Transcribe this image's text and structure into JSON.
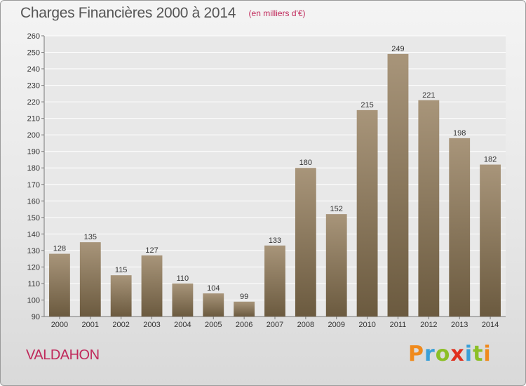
{
  "header": {
    "title": "Charges Financières 2000 à 2014",
    "subtitle": "(en milliers d'€)"
  },
  "footer": {
    "commune": "VALDAHON",
    "logo_text": "Proxiti",
    "logo_colors": [
      "#f08a1c",
      "#3aa0d8",
      "#8cbf26",
      "#e0301e",
      "#3aa0d8",
      "#8cbf26",
      "#f08a1c"
    ]
  },
  "colors": {
    "bar_top": "#a8957a",
    "bar_bottom": "#6b5a3f",
    "plot_bg": "#e8e8e8",
    "grid": "#ffffff",
    "axis": "#777777",
    "accent": "#c0285a"
  },
  "chart_data": {
    "type": "bar",
    "title": "Charges Financières 2000 à 2014",
    "subtitle": "(en milliers d'€)",
    "categories": [
      "2000",
      "2001",
      "2002",
      "2003",
      "2004",
      "2005",
      "2006",
      "2007",
      "2008",
      "2009",
      "2010",
      "2011",
      "2012",
      "2013",
      "2014"
    ],
    "values": [
      128,
      135,
      115,
      127,
      110,
      104,
      99,
      133,
      180,
      152,
      215,
      249,
      221,
      198,
      182
    ],
    "ylim": [
      90,
      260
    ],
    "yticks": [
      90,
      100,
      110,
      120,
      130,
      140,
      150,
      160,
      170,
      180,
      190,
      200,
      210,
      220,
      230,
      240,
      250,
      260
    ],
    "grid": true,
    "legend": "none"
  }
}
